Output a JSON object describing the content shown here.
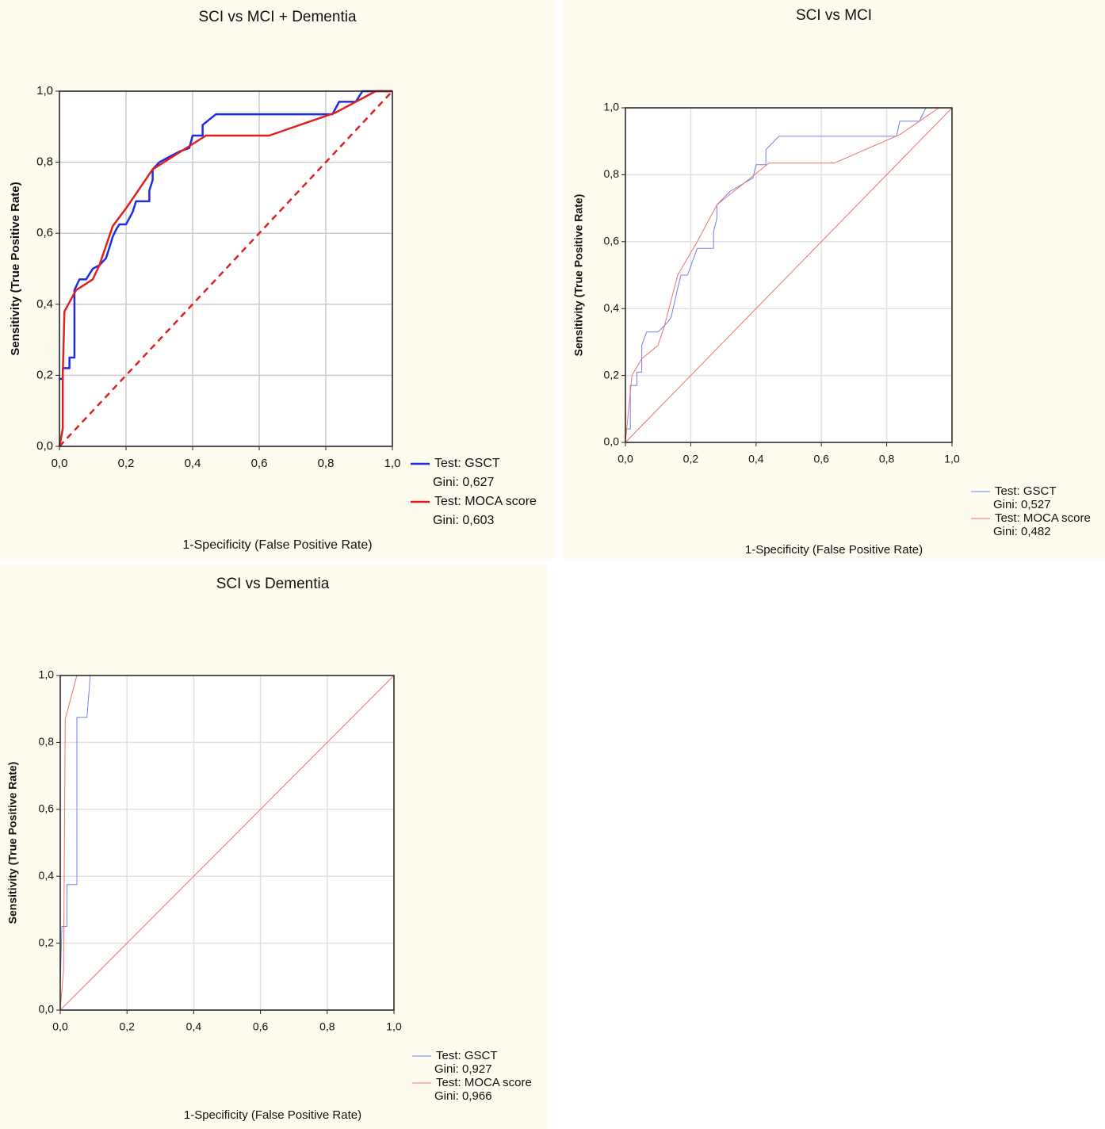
{
  "chart_data": [
    {
      "type": "line",
      "title": "SCI vs MCI + Dementia",
      "x_label": "1-Specificity (False Positive Rate)",
      "y_label": "Sensitivity (True Positive Rate)",
      "xlim": [
        0,
        1
      ],
      "ylim": [
        0,
        1
      ],
      "grid": true,
      "line_width": 2.5,
      "xticks": [
        {
          "value": 0,
          "label": "0,0"
        },
        {
          "value": 0.2,
          "label": "0,2"
        },
        {
          "value": 0.4,
          "label": "0,4"
        },
        {
          "value": 0.6,
          "label": "0,6"
        },
        {
          "value": 0.8,
          "label": "0,8"
        },
        {
          "value": 1,
          "label": "1,0"
        }
      ],
      "yticks": [
        {
          "value": 0,
          "label": "0,0"
        },
        {
          "value": 0.2,
          "label": "0,2"
        },
        {
          "value": 0.4,
          "label": "0,4"
        },
        {
          "value": 0.6,
          "label": "0,6"
        },
        {
          "value": 0.8,
          "label": "0,8"
        },
        {
          "value": 1,
          "label": "1,0"
        }
      ],
      "reference": {
        "x": [
          0,
          1
        ],
        "values": [
          0,
          1
        ],
        "color": "#e02020",
        "dashed": true
      },
      "series": [
        {
          "name": "Test: GSCT",
          "note": "Gini: 0,627",
          "color": "#1f2de0",
          "x": [
            0,
            0.01,
            0.01,
            0.03,
            0.03,
            0.045,
            0.045,
            0.06,
            0.08,
            0.1,
            0.12,
            0.14,
            0.16,
            0.17,
            0.18,
            0.2,
            0.22,
            0.23,
            0.27,
            0.27,
            0.28,
            0.28,
            0.3,
            0.32,
            0.34,
            0.36,
            0.39,
            0.4,
            0.43,
            0.43,
            0.45,
            0.47,
            0.82,
            0.84,
            0.89,
            0.91,
            1
          ],
          "values": [
            0.19,
            0.19,
            0.22,
            0.22,
            0.25,
            0.25,
            0.44,
            0.47,
            0.47,
            0.5,
            0.51,
            0.53,
            0.59,
            0.61,
            0.625,
            0.625,
            0.66,
            0.69,
            0.69,
            0.72,
            0.75,
            0.78,
            0.8,
            0.81,
            0.82,
            0.83,
            0.84,
            0.875,
            0.875,
            0.905,
            0.92,
            0.935,
            0.935,
            0.97,
            0.97,
            1,
            1
          ]
        },
        {
          "name": "Test: MOCA score",
          "note": "Gini: 0,603",
          "color": "#e02020",
          "x": [
            0,
            0.01,
            0.01,
            0.015,
            0.05,
            0.1,
            0.12,
            0.16,
            0.2,
            0.28,
            0.44,
            0.63,
            0.83,
            0.95,
            1
          ],
          "values": [
            0,
            0.05,
            0.2,
            0.38,
            0.44,
            0.47,
            0.51,
            0.62,
            0.67,
            0.78,
            0.875,
            0.875,
            0.94,
            1,
            1
          ]
        }
      ]
    },
    {
      "type": "line",
      "title": "SCI vs MCI",
      "x_label": "1-Specificity (False Positive Rate)",
      "y_label": "Sensitivity (True Positive Rate)",
      "xlim": [
        0,
        1
      ],
      "ylim": [
        0,
        1
      ],
      "grid": true,
      "line_width": 1,
      "xticks": [
        {
          "value": 0,
          "label": "0,0"
        },
        {
          "value": 0.2,
          "label": "0,2"
        },
        {
          "value": 0.4,
          "label": "0,4"
        },
        {
          "value": 0.6,
          "label": "0,6"
        },
        {
          "value": 0.8,
          "label": "0,8"
        },
        {
          "value": 1,
          "label": "1,0"
        }
      ],
      "yticks": [
        {
          "value": 0,
          "label": "0,0"
        },
        {
          "value": 0.2,
          "label": "0,2"
        },
        {
          "value": 0.4,
          "label": "0,4"
        },
        {
          "value": 0.6,
          "label": "0,6"
        },
        {
          "value": 0.8,
          "label": "0,8"
        },
        {
          "value": 1,
          "label": "1,0"
        }
      ],
      "reference": {
        "x": [
          0,
          1
        ],
        "values": [
          0,
          1
        ],
        "color": "#ee7070",
        "dashed": false
      },
      "series": [
        {
          "name": "Test: GSCT",
          "note": "Gini: 0,527",
          "color": "#7080e8",
          "x": [
            0,
            0.015,
            0.015,
            0.035,
            0.035,
            0.05,
            0.05,
            0.065,
            0.1,
            0.13,
            0.14,
            0.16,
            0.17,
            0.19,
            0.22,
            0.27,
            0.27,
            0.28,
            0.28,
            0.32,
            0.39,
            0.4,
            0.43,
            0.43,
            0.47,
            0.83,
            0.84,
            0.9,
            0.92,
            1
          ],
          "values": [
            0.04,
            0.04,
            0.17,
            0.17,
            0.21,
            0.21,
            0.29,
            0.33,
            0.33,
            0.36,
            0.375,
            0.46,
            0.5,
            0.5,
            0.58,
            0.58,
            0.63,
            0.67,
            0.71,
            0.75,
            0.79,
            0.83,
            0.83,
            0.875,
            0.915,
            0.915,
            0.96,
            0.96,
            1,
            1
          ]
        },
        {
          "name": "Test: MOCA score",
          "note": "Gini: 0,482",
          "color": "#ee7070",
          "x": [
            0,
            0.02,
            0.05,
            0.1,
            0.12,
            0.16,
            0.22,
            0.28,
            0.44,
            0.64,
            0.84,
            0.93,
            0.96,
            1
          ],
          "values": [
            0,
            0.2,
            0.25,
            0.29,
            0.35,
            0.5,
            0.6,
            0.71,
            0.835,
            0.835,
            0.92,
            0.98,
            1,
            1
          ]
        }
      ]
    },
    {
      "type": "line",
      "title": "SCI vs Dementia",
      "x_label": "1-Specificity (False Positive Rate)",
      "y_label": "Sensitivity (True Positive Rate)",
      "xlim": [
        0,
        1
      ],
      "ylim": [
        0,
        1
      ],
      "grid": true,
      "line_width": 1,
      "xticks": [
        {
          "value": 0,
          "label": "0,0"
        },
        {
          "value": 0.2,
          "label": "0,2"
        },
        {
          "value": 0.4,
          "label": "0,4"
        },
        {
          "value": 0.6,
          "label": "0,6"
        },
        {
          "value": 0.8,
          "label": "0,8"
        },
        {
          "value": 1,
          "label": "1,0"
        }
      ],
      "yticks": [
        {
          "value": 0,
          "label": "0,0"
        },
        {
          "value": 0.2,
          "label": "0,2"
        },
        {
          "value": 0.4,
          "label": "0,4"
        },
        {
          "value": 0.6,
          "label": "0,6"
        },
        {
          "value": 0.8,
          "label": "0,8"
        },
        {
          "value": 1,
          "label": "1,0"
        }
      ],
      "reference": {
        "x": [
          0,
          1
        ],
        "values": [
          0,
          1
        ],
        "color": "#ee7070",
        "dashed": false
      },
      "series": [
        {
          "name": "Test: GSCT",
          "note": "Gini: 0,927",
          "color": "#7080e8",
          "x": [
            0,
            0.005,
            0.02,
            0.02,
            0.05,
            0.05,
            0.08,
            0.09,
            1
          ],
          "values": [
            0.08,
            0.25,
            0.25,
            0.375,
            0.375,
            0.875,
            0.875,
            1,
            1
          ]
        },
        {
          "name": "Test: MOCA score",
          "note": "Gini: 0,966",
          "color": "#ee7070",
          "x": [
            0,
            0.01,
            0.015,
            0.05,
            1
          ],
          "values": [
            0,
            0.12,
            0.87,
            1,
            1
          ]
        }
      ]
    }
  ]
}
